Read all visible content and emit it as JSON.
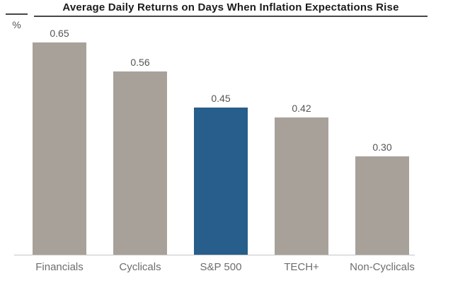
{
  "header": {
    "title": "Average Daily Returns on Days When Inflation Expectations Rise",
    "unit_label": "%"
  },
  "chart_data": {
    "type": "bar",
    "title": "Average Daily Returns on Days When Inflation Expectations Rise",
    "xlabel": "",
    "ylabel": "%",
    "categories": [
      "Financials",
      "Cyclicals",
      "S&P 500",
      "TECH+",
      "Non-Cyclicals"
    ],
    "values": [
      0.65,
      0.56,
      0.45,
      0.42,
      0.3
    ],
    "value_labels": [
      "0.65",
      "0.56",
      "0.45",
      "0.42",
      "0.30"
    ],
    "highlight_category": "S&P 500",
    "bar_colors": [
      "#a8a19a",
      "#a8a19a",
      "#275e8b",
      "#a8a19a",
      "#a8a19a"
    ],
    "ylim": [
      0,
      0.78
    ],
    "grid": false,
    "legend": "none"
  },
  "colors": {
    "bar_default": "#a8a19a",
    "bar_highlight": "#275e8b",
    "title_text": "#1c1c1c",
    "rule": "#474747",
    "value_label": "#545454",
    "category_label": "#6d6d6d",
    "baseline": "#c6c6c6"
  }
}
